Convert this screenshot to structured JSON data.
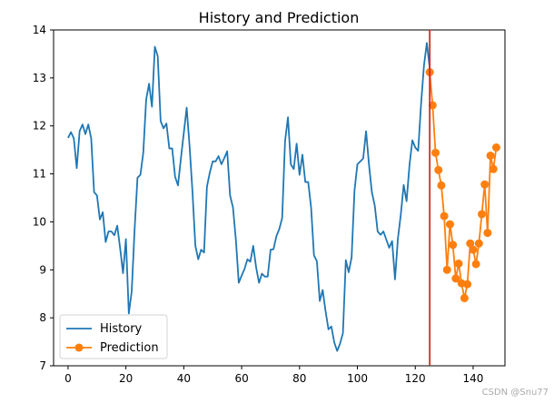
{
  "watermark": "CSDN @Snu77",
  "chart_data": {
    "type": "line",
    "title": "History and Prediction",
    "xlabel": "",
    "ylabel": "",
    "xlim": [
      -5,
      151
    ],
    "ylim": [
      7,
      14
    ],
    "xticks": [
      0,
      20,
      40,
      60,
      80,
      100,
      120,
      140
    ],
    "yticks": [
      7,
      8,
      9,
      10,
      11,
      12,
      13,
      14
    ],
    "vline": {
      "x": 125,
      "color": "#d62728"
    },
    "legend": {
      "position": "lower-left"
    },
    "series": [
      {
        "name": "History",
        "color": "#1f77b4",
        "marker": "none",
        "x": [
          0,
          1,
          2,
          3,
          4,
          5,
          6,
          7,
          8,
          9,
          10,
          11,
          12,
          13,
          14,
          15,
          16,
          17,
          18,
          19,
          20,
          21,
          22,
          23,
          24,
          25,
          26,
          27,
          28,
          29,
          30,
          31,
          32,
          33,
          34,
          35,
          36,
          37,
          38,
          39,
          40,
          41,
          42,
          43,
          44,
          45,
          46,
          47,
          48,
          49,
          50,
          51,
          52,
          53,
          54,
          55,
          56,
          57,
          58,
          59,
          60,
          61,
          62,
          63,
          64,
          65,
          66,
          67,
          68,
          69,
          70,
          71,
          72,
          73,
          74,
          75,
          76,
          77,
          78,
          79,
          80,
          81,
          82,
          83,
          84,
          85,
          86,
          87,
          88,
          89,
          90,
          91,
          92,
          93,
          94,
          95,
          96,
          97,
          98,
          99,
          100,
          101,
          102,
          103,
          104,
          105,
          106,
          107,
          108,
          109,
          110,
          111,
          112,
          113,
          114,
          115,
          116,
          117,
          118,
          119,
          120,
          121,
          122,
          123,
          124,
          125
        ],
        "values": [
          11.75,
          11.87,
          11.74,
          11.12,
          11.89,
          12.03,
          11.83,
          12.03,
          11.74,
          10.62,
          10.55,
          10.05,
          10.2,
          9.58,
          9.8,
          9.8,
          9.72,
          9.92,
          9.45,
          8.93,
          9.64,
          8.09,
          8.55,
          9.84,
          10.92,
          10.98,
          11.44,
          12.55,
          12.88,
          12.4,
          13.65,
          13.45,
          12.1,
          11.95,
          12.05,
          11.53,
          11.53,
          10.94,
          10.76,
          11.32,
          11.85,
          12.38,
          11.58,
          10.63,
          9.5,
          9.22,
          9.42,
          9.36,
          10.73,
          11.03,
          11.26,
          11.26,
          11.37,
          11.2,
          11.33,
          11.47,
          10.55,
          10.3,
          9.63,
          8.73,
          8.88,
          9.02,
          9.22,
          9.17,
          9.5,
          9.05,
          8.73,
          8.92,
          8.86,
          8.86,
          9.42,
          9.43,
          9.7,
          9.85,
          10.08,
          11.68,
          12.18,
          11.2,
          11.1,
          11.63,
          10.98,
          11.4,
          10.83,
          10.83,
          10.3,
          9.3,
          9.18,
          8.35,
          8.58,
          8.14,
          7.76,
          7.82,
          7.49,
          7.31,
          7.46,
          7.68,
          9.2,
          8.95,
          9.26,
          10.65,
          11.2,
          11.26,
          11.32,
          11.89,
          11.2,
          10.62,
          10.34,
          9.8,
          9.73,
          9.8,
          9.63,
          9.46,
          9.6,
          8.8,
          9.65,
          10.15,
          10.77,
          10.43,
          11.18,
          11.7,
          11.55,
          11.48,
          12.45,
          13.25,
          13.73,
          13.2
        ]
      },
      {
        "name": "Prediction",
        "color": "#ff7f0e",
        "marker": "o",
        "x": [
          125,
          126,
          127,
          128,
          129,
          130,
          131,
          132,
          133,
          134,
          135,
          136,
          137,
          138,
          139,
          140,
          141,
          142,
          143,
          144,
          145,
          146,
          147,
          148
        ],
        "values": [
          13.12,
          12.43,
          11.44,
          11.08,
          10.76,
          10.12,
          9.0,
          9.95,
          9.52,
          8.82,
          9.13,
          8.72,
          8.41,
          8.7,
          9.55,
          9.42,
          9.12,
          9.55,
          10.16,
          10.78,
          9.77,
          11.38,
          11.1,
          11.55
        ]
      }
    ]
  }
}
